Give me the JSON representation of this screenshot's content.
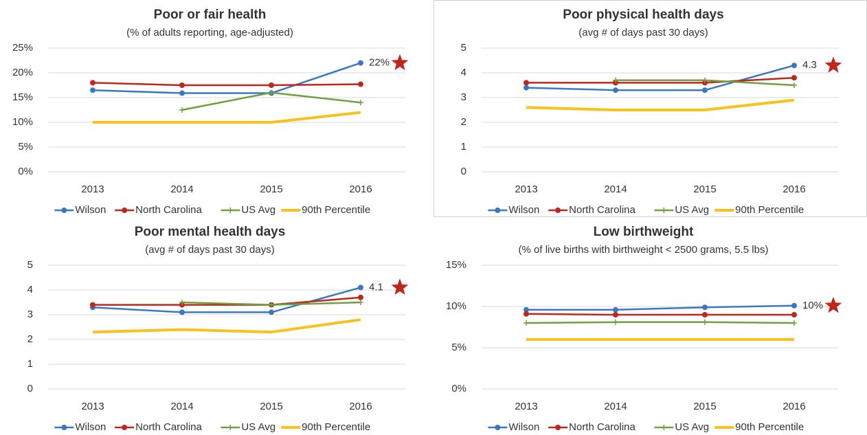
{
  "chart_data": [
    {
      "type": "line",
      "title": "Poor or fair health",
      "subtitle": "(% of adults reporting, age-adjusted)",
      "categories": [
        "2013",
        "2014",
        "2015",
        "2016"
      ],
      "series": [
        {
          "name": "Wilson",
          "color": "#3a78c3",
          "marker": "circle",
          "values": [
            16.5,
            15.9,
            15.9,
            22
          ],
          "value_labels": [
            null,
            null,
            null,
            "22%"
          ]
        },
        {
          "name": "North Carolina",
          "color": "#c0271c",
          "marker": "circle",
          "values": [
            18,
            17.5,
            17.5,
            17.7
          ]
        },
        {
          "name": "US Avg",
          "color": "#70a040",
          "marker": "plus",
          "values": [
            null,
            12.5,
            16,
            14
          ]
        },
        {
          "name": "90th Percentile",
          "color": "#f8c11b",
          "line_width": 4,
          "values": [
            10,
            10,
            10,
            12
          ]
        }
      ],
      "ylim": [
        0,
        25
      ],
      "yticks": [
        {
          "value": 0,
          "label": "0%"
        },
        {
          "value": 5,
          "label": "5%"
        },
        {
          "value": 10,
          "label": "10%"
        },
        {
          "value": 15,
          "label": "15%"
        },
        {
          "value": 20,
          "label": "20%"
        },
        {
          "value": 25,
          "label": "25%"
        }
      ],
      "grid": true,
      "legend": "bottom"
    },
    {
      "type": "line",
      "title": "Poor physical health days",
      "subtitle": "(avg # of days past 30 days)",
      "categories": [
        "2013",
        "2014",
        "2015",
        "2016"
      ],
      "series": [
        {
          "name": "Wilson",
          "color": "#3a78c3",
          "marker": "circle",
          "values": [
            3.4,
            3.3,
            3.3,
            4.3
          ],
          "value_labels": [
            null,
            null,
            null,
            "4.3"
          ]
        },
        {
          "name": "North Carolina",
          "color": "#c0271c",
          "marker": "circle",
          "values": [
            3.6,
            3.6,
            3.6,
            3.8
          ]
        },
        {
          "name": "US Avg",
          "color": "#70a040",
          "marker": "plus",
          "values": [
            null,
            3.7,
            3.7,
            3.5
          ]
        },
        {
          "name": "90th Percentile",
          "color": "#f8c11b",
          "line_width": 4,
          "values": [
            2.6,
            2.5,
            2.5,
            2.9
          ]
        }
      ],
      "ylim": [
        0,
        5
      ],
      "yticks": [
        0,
        1,
        2,
        3,
        4,
        5
      ],
      "grid": true,
      "legend": "bottom"
    },
    {
      "type": "line",
      "title": "Poor mental health days",
      "subtitle": "(avg # of days past 30 days)",
      "categories": [
        "2013",
        "2014",
        "2015",
        "2016"
      ],
      "series": [
        {
          "name": "Wilson",
          "color": "#3a78c3",
          "marker": "circle",
          "values": [
            3.3,
            3.1,
            3.1,
            4.1
          ],
          "value_labels": [
            null,
            null,
            null,
            "4.1"
          ]
        },
        {
          "name": "North Carolina",
          "color": "#c0271c",
          "marker": "circle",
          "values": [
            3.4,
            3.4,
            3.4,
            3.7
          ]
        },
        {
          "name": "US Avg",
          "color": "#70a040",
          "marker": "plus",
          "values": [
            null,
            3.5,
            3.4,
            3.5
          ]
        },
        {
          "name": "90th Percentile",
          "color": "#f8c11b",
          "line_width": 4,
          "values": [
            2.3,
            2.4,
            2.3,
            2.8
          ]
        }
      ],
      "ylim": [
        0,
        5
      ],
      "yticks": [
        0,
        1,
        2,
        3,
        4,
        5
      ],
      "grid": true,
      "legend": "bottom"
    },
    {
      "type": "line",
      "title": "Low birthweight",
      "subtitle": "(% of live births with birthweight < 2500 grams, 5.5 lbs)",
      "categories": [
        "2013",
        "2014",
        "2015",
        "2016"
      ],
      "series": [
        {
          "name": "Wilson",
          "color": "#3a78c3",
          "marker": "circle",
          "values": [
            9.6,
            9.6,
            9.9,
            10.1
          ],
          "value_labels": [
            null,
            null,
            null,
            "10%"
          ]
        },
        {
          "name": "North Carolina",
          "color": "#c0271c",
          "marker": "circle",
          "values": [
            9.1,
            9,
            9,
            9
          ]
        },
        {
          "name": "US Avg",
          "color": "#70a040",
          "marker": "plus",
          "values": [
            8,
            8.1,
            8.1,
            8
          ]
        },
        {
          "name": "90th Percentile",
          "color": "#f8c11b",
          "line_width": 4,
          "values": [
            6,
            6,
            6,
            6
          ]
        }
      ],
      "ylim": [
        0,
        15
      ],
      "yticks": [
        {
          "value": 0,
          "label": "0%"
        },
        {
          "value": 5,
          "label": "5%"
        },
        {
          "value": 10,
          "label": "10%"
        },
        {
          "value": 15,
          "label": "15%"
        }
      ],
      "grid": true,
      "legend": "bottom"
    }
  ]
}
